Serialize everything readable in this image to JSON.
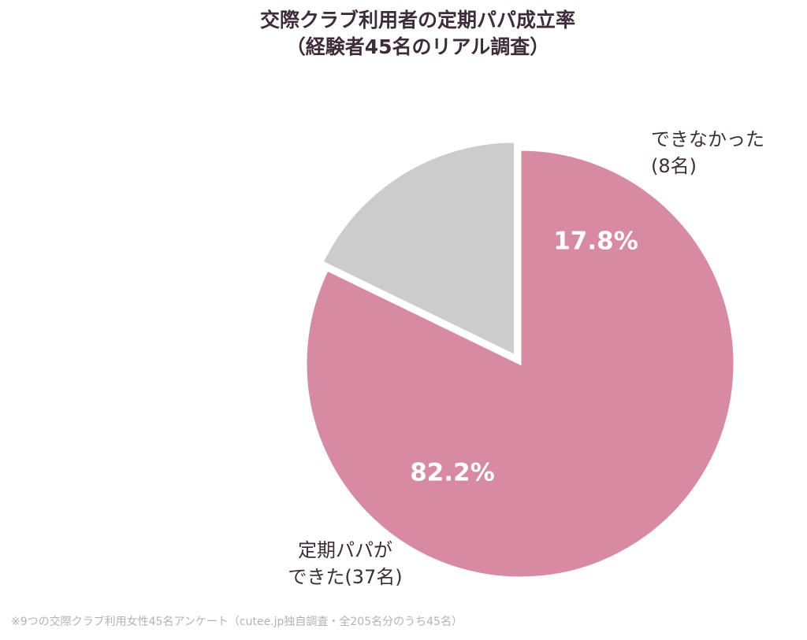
{
  "chart_data": {
    "type": "pie",
    "title_line1": "交際クラブ利用者の定期パパ成立率",
    "title_line2": "（経験者45名のリアル調査）",
    "slices": [
      {
        "label_line1": "定期パパが",
        "label_line2": "できた(37名)",
        "value": 82.2,
        "value_label": "82.2%",
        "color": "#d78aa1"
      },
      {
        "label_line1": "できなかった",
        "label_line2": "(8名)",
        "value": 17.8,
        "value_label": "17.8%",
        "color": "#cccccc"
      }
    ],
    "exploded_slice_index": 1,
    "start_angle_deg": 0,
    "direction": "clockwise"
  },
  "footnote": "※9つの交際クラブ利用女性45名アンケート（cutee.jp独自調査・全205名分のうち45名）"
}
